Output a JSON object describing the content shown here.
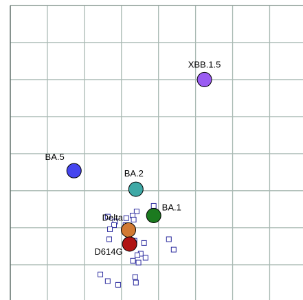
{
  "chart_data": {
    "type": "scatter",
    "xlim": [
      0,
      7.9
    ],
    "ylim": [
      0.05,
      8
    ],
    "xticks": [
      1,
      2,
      3,
      4,
      5,
      6,
      7
    ],
    "yticks": [
      1,
      2,
      3,
      4,
      5,
      6,
      7
    ],
    "grid": true,
    "series": [
      {
        "marker": "square",
        "color": "#2b2b9e",
        "x": [
          3.87,
          3.41,
          3.3,
          3.33,
          2.63,
          2.83,
          2.8,
          3.11,
          2.69,
          2.67,
          3.35,
          3.61,
          4.28,
          4.41,
          3.52,
          3.43,
          3.65,
          3.31,
          3.46,
          2.43,
          2.63,
          2.91,
          3.37,
          3.39,
          3.13
        ],
        "values": [
          2.59,
          2.44,
          2.33,
          2.22,
          2.3,
          2.17,
          2.07,
          2.07,
          1.96,
          1.69,
          1.65,
          1.59,
          1.69,
          1.41,
          1.3,
          1.26,
          1.19,
          1.11,
          1.06,
          0.74,
          0.56,
          0.46,
          0.67,
          0.52,
          2.26
        ]
      },
      {
        "marker": "circle",
        "labels": [
          "XBB.1.5",
          "BA.5",
          "BA.2",
          "BA.1",
          "Delta",
          "D614G"
        ],
        "colors": [
          "#9a5cf2",
          "#4545ee",
          "#3fa9a6",
          "#1b7a1f",
          "#d27a33",
          "#b01414"
        ],
        "x": [
          5.24,
          1.72,
          3.39,
          3.87,
          3.19,
          3.22
        ],
        "values": [
          6.0,
          3.54,
          3.04,
          2.33,
          1.94,
          1.56
        ]
      }
    ]
  }
}
